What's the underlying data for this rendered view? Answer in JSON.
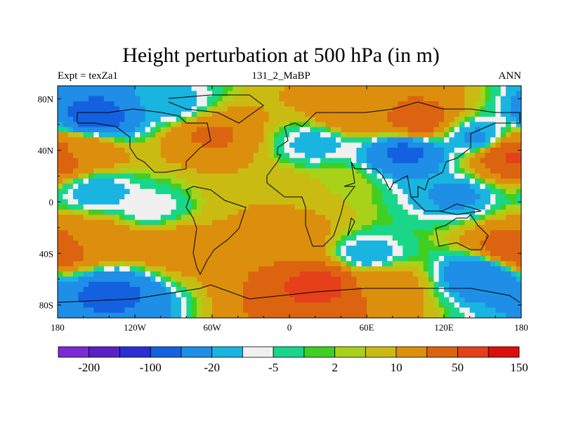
{
  "chart_data": {
    "type": "heatmap",
    "title": "Height perturbation at 500 hPa (in m)",
    "left_label": "Expt = texZa1",
    "center_label": "131_2_MaBP",
    "right_label": "ANN",
    "x_ticks": [
      {
        "value": -180,
        "label": "180"
      },
      {
        "value": -120,
        "label": "120W"
      },
      {
        "value": -60,
        "label": "60W"
      },
      {
        "value": 0,
        "label": "0"
      },
      {
        "value": 60,
        "label": "60E"
      },
      {
        "value": 120,
        "label": "120E"
      },
      {
        "value": 180,
        "label": "180"
      }
    ],
    "y_ticks": [
      {
        "value": 80,
        "label": "80N"
      },
      {
        "value": 40,
        "label": "40N"
      },
      {
        "value": 0,
        "label": "0"
      },
      {
        "value": -40,
        "label": "40S"
      },
      {
        "value": -80,
        "label": "80S"
      }
    ],
    "xlim": [
      -180,
      180
    ],
    "ylim": [
      -90,
      90
    ],
    "colorbar": {
      "colors": [
        "#7b2bd6",
        "#5a1fc8",
        "#2c2ed4",
        "#1461e0",
        "#1e8ee6",
        "#19b4e0",
        "#f0f0f0",
        "#19d688",
        "#3fcf22",
        "#a8d21a",
        "#cabb12",
        "#dc8f0c",
        "#dc6410",
        "#e6401a",
        "#dc0d0d"
      ],
      "labels": [
        {
          "after_box": 1,
          "text": "-200"
        },
        {
          "after_box": 3,
          "text": "-100"
        },
        {
          "after_box": 5,
          "text": "-20"
        },
        {
          "after_box": 7,
          "text": "-5"
        },
        {
          "after_box": 9,
          "text": "2"
        },
        {
          "after_box": 11,
          "text": "10"
        },
        {
          "after_box": 13,
          "text": "50"
        },
        {
          "after_box": 15,
          "text": "150"
        }
      ]
    },
    "field_centers": [
      {
        "lon": -150,
        "lat": 65,
        "value": -70
      },
      {
        "lon": -90,
        "lat": 75,
        "value": -15
      },
      {
        "lon": 50,
        "lat": 68,
        "value": 45
      },
      {
        "lon": 100,
        "lat": 63,
        "value": 70
      },
      {
        "lon": -160,
        "lat": 40,
        "value": 35
      },
      {
        "lon": -60,
        "lat": 52,
        "value": 55
      },
      {
        "lon": 20,
        "lat": 45,
        "value": -15
      },
      {
        "lon": 90,
        "lat": 38,
        "value": -60
      },
      {
        "lon": 175,
        "lat": 35,
        "value": 110
      },
      {
        "lon": 145,
        "lat": 50,
        "value": -25
      },
      {
        "lon": -150,
        "lat": 8,
        "value": -20
      },
      {
        "lon": -110,
        "lat": -5,
        "value": -10
      },
      {
        "lon": -15,
        "lat": 10,
        "value": 20
      },
      {
        "lon": 40,
        "lat": 15,
        "value": 10
      },
      {
        "lon": 130,
        "lat": 5,
        "value": -25
      },
      {
        "lon": -150,
        "lat": -28,
        "value": 40
      },
      {
        "lon": -90,
        "lat": -35,
        "value": 35
      },
      {
        "lon": 0,
        "lat": -25,
        "value": 30
      },
      {
        "lon": 60,
        "lat": -42,
        "value": -20
      },
      {
        "lon": 150,
        "lat": -55,
        "value": -50
      },
      {
        "lon": 175,
        "lat": -38,
        "value": 90
      },
      {
        "lon": -140,
        "lat": -70,
        "value": -60
      },
      {
        "lon": 25,
        "lat": -64,
        "value": 120
      },
      {
        "lon": 70,
        "lat": -62,
        "value": 35
      }
    ]
  }
}
